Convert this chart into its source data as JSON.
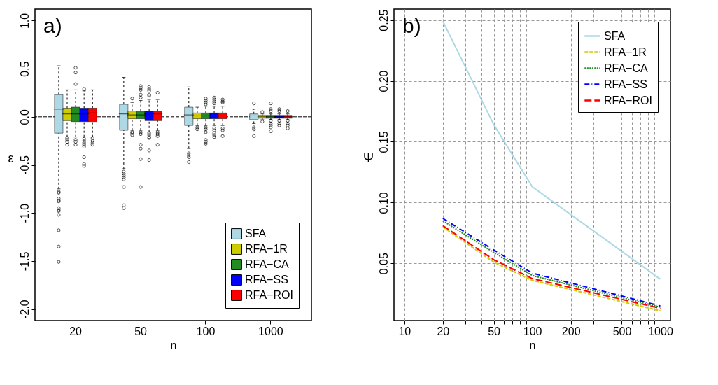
{
  "chart_data": [
    {
      "type": "box",
      "xlabel": "n",
      "ylabel": "ε",
      "categories": [
        "20",
        "50",
        "100",
        "1000"
      ],
      "legend": "bottom right",
      "annotations": [
        "a)"
      ],
      "ylim": [
        -2.12,
        1.12
      ],
      "yticks": [
        {
          "value": -2,
          "label": "-2.0"
        },
        {
          "value": -1.5,
          "label": "-1.5"
        },
        {
          "value": -1,
          "label": "-1.0"
        },
        {
          "value": -0.5,
          "label": "-0.5"
        },
        {
          "value": 0,
          "label": "0.0"
        },
        {
          "value": 0.5,
          "label": "0.5"
        },
        {
          "value": 1,
          "label": "1.0"
        }
      ],
      "ref_lines": [
        {
          "axis": "y",
          "value": 0,
          "label": null,
          "line_style": "dashed",
          "color": "#000000"
        }
      ],
      "series": [
        {
          "name": "SFA",
          "color": "#add8e6",
          "boxes": [
            {
              "low": -0.75,
              "q1": -0.17,
              "median": 0.08,
              "q3": 0.23,
              "high": 0.53,
              "outliers": [
                -0.78,
                -0.79,
                -0.85,
                -0.87,
                -0.88,
                -0.95,
                -0.97,
                -0.98,
                -1.02,
                -1.18,
                -1.35,
                -1.51
              ]
            },
            {
              "low": -0.54,
              "q1": -0.14,
              "median": 0.03,
              "q3": 0.13,
              "high": 0.41,
              "outliers": [
                -0.57,
                -0.59,
                -0.61,
                -0.63,
                -0.65,
                -0.73,
                -0.92,
                -0.95
              ]
            },
            {
              "low": -0.33,
              "q1": -0.09,
              "median": 0.02,
              "q3": 0.1,
              "high": 0.31,
              "outliers": [
                -0.38,
                -0.4,
                -0.42,
                -0.47
              ]
            },
            {
              "low": -0.07,
              "q1": -0.03,
              "median": 0.01,
              "q3": 0.03,
              "high": 0.08,
              "outliers": [
                0.14,
                -0.11,
                -0.13,
                -0.2
              ]
            }
          ]
        },
        {
          "name": "RFA−1R",
          "color": "#cdcd00",
          "boxes": [
            {
              "low": -0.21,
              "q1": -0.04,
              "median": 0.03,
              "q3": 0.09,
              "high": 0.28,
              "outliers": [
                -0.22,
                -0.24,
                -0.26,
                -0.29
              ]
            },
            {
              "low": -0.14,
              "q1": -0.02,
              "median": 0.02,
              "q3": 0.06,
              "high": 0.15,
              "outliers": [
                0.19,
                -0.16,
                -0.17,
                -0.19
              ]
            },
            {
              "low": -0.09,
              "q1": -0.02,
              "median": 0.01,
              "q3": 0.04,
              "high": 0.1,
              "outliers": [
                -0.11,
                -0.13
              ]
            },
            {
              "low": -0.03,
              "q1": -0.015,
              "median": 0.0,
              "q3": 0.015,
              "high": 0.03,
              "outliers": [
                0.05,
                -0.05
              ]
            }
          ]
        },
        {
          "name": "RFA−CA",
          "color": "#228b22",
          "boxes": [
            {
              "low": -0.21,
              "q1": -0.05,
              "median": 0.03,
              "q3": 0.1,
              "high": 0.28,
              "outliers": [
                0.51,
                0.46,
                0.34,
                -0.24,
                -0.26,
                -0.29
              ]
            },
            {
              "low": -0.14,
              "q1": -0.02,
              "median": 0.02,
              "q3": 0.06,
              "high": 0.17,
              "outliers": [
                0.32,
                0.3,
                0.28,
                0.23,
                0.2,
                -0.16,
                -0.18,
                -0.29,
                -0.33,
                -0.44,
                -0.73
              ]
            },
            {
              "low": -0.09,
              "q1": -0.02,
              "median": 0.01,
              "q3": 0.04,
              "high": 0.11,
              "outliers": [
                0.19,
                0.17,
                0.15,
                0.13,
                -0.11,
                -0.13,
                -0.16,
                -0.24,
                -0.26,
                -0.28
              ]
            },
            {
              "low": -0.03,
              "q1": -0.015,
              "median": 0.0,
              "q3": 0.015,
              "high": 0.03,
              "outliers": [
                0.14,
                0.08,
                0.06,
                -0.04,
                -0.07,
                -0.09,
                -0.11,
                -0.15
              ]
            }
          ]
        },
        {
          "name": "RFA−SS",
          "color": "#0000ff",
          "boxes": [
            {
              "low": -0.21,
              "q1": -0.05,
              "median": 0.03,
              "q3": 0.09,
              "high": 0.27,
              "outliers": [
                0.29,
                -0.23,
                -0.25,
                -0.27,
                -0.29,
                -0.31,
                -0.42,
                -0.49,
                -0.51
              ]
            },
            {
              "low": -0.16,
              "q1": -0.04,
              "median": 0.03,
              "q3": 0.06,
              "high": 0.18,
              "outliers": [
                0.31,
                0.29,
                0.27,
                0.23,
                0.22,
                -0.17,
                -0.19,
                -0.21,
                -0.22,
                -0.35,
                -0.45
              ]
            },
            {
              "low": -0.09,
              "q1": -0.02,
              "median": 0.01,
              "q3": 0.04,
              "high": 0.11,
              "outliers": [
                0.2,
                0.18,
                0.16,
                0.14,
                -0.12,
                -0.14,
                -0.17,
                -0.19,
                -0.21
              ]
            },
            {
              "low": -0.03,
              "q1": -0.015,
              "median": 0.0,
              "q3": 0.015,
              "high": 0.03,
              "outliers": [
                0.08,
                0.06,
                -0.04,
                -0.07,
                -0.09
              ]
            }
          ]
        },
        {
          "name": "RFA−ROI",
          "color": "#ff0000",
          "boxes": [
            {
              "low": -0.21,
              "q1": -0.05,
              "median": 0.04,
              "q3": 0.09,
              "high": 0.28,
              "outliers": [
                -0.22,
                -0.25,
                -0.27,
                -0.29
              ]
            },
            {
              "low": -0.14,
              "q1": -0.04,
              "median": 0.03,
              "q3": 0.06,
              "high": 0.18,
              "outliers": [
                0.25,
                -0.16,
                -0.18,
                -0.2,
                -0.29
              ]
            },
            {
              "low": -0.09,
              "q1": -0.02,
              "median": 0.01,
              "q3": 0.04,
              "high": 0.11,
              "outliers": [
                0.18,
                0.16,
                0.15,
                -0.12,
                -0.14,
                -0.2
              ]
            },
            {
              "low": -0.03,
              "q1": -0.015,
              "median": 0.0,
              "q3": 0.015,
              "high": 0.03,
              "outliers": [
                0.06,
                -0.04,
                -0.07,
                -0.09,
                -0.12
              ]
            }
          ]
        }
      ]
    },
    {
      "type": "line",
      "xlabel": "n",
      "ylabel": "Ψ",
      "log": "x",
      "grid": true,
      "legend": "top right",
      "annotations": [
        "b)"
      ],
      "xlim": [
        8.3,
        1200
      ],
      "xticks": [
        10,
        20,
        {
          "value": 30,
          "label": null
        },
        {
          "value": 40,
          "label": null
        },
        50,
        {
          "value": 60,
          "label": null
        },
        {
          "value": 70,
          "label": null
        },
        {
          "value": 80,
          "label": null
        },
        {
          "value": 90,
          "label": null
        },
        100,
        200,
        {
          "value": 300,
          "label": null
        },
        {
          "value": 400,
          "label": null
        },
        500,
        {
          "value": 600,
          "label": null
        },
        {
          "value": 700,
          "label": null
        },
        {
          "value": 800,
          "label": null
        },
        {
          "value": 900,
          "label": null
        },
        1000
      ],
      "ylim": [
        0.003,
        0.259
      ],
      "yticks": [
        0.05,
        {
          "value": 0.1,
          "label": "0.10"
        },
        0.15,
        {
          "value": 0.2,
          "label": "0.20"
        },
        0.25
      ],
      "x": [
        20,
        50,
        100,
        1000
      ],
      "series": [
        {
          "name": "SFA",
          "color": "#add8e6",
          "line_style": "solid",
          "values": [
            0.249,
            0.164,
            0.113,
            0.037
          ]
        },
        {
          "name": "RFA−1R",
          "color": "#cdcd00",
          "line_style": "dashed",
          "values": [
            0.08,
            0.051,
            0.036,
            0.011
          ]
        },
        {
          "name": "RFA−CA",
          "color": "#228b22",
          "line_style": "dotted",
          "values": [
            0.085,
            0.059,
            0.04,
            0.014
          ]
        },
        {
          "name": "RFA−SS",
          "color": "#0000ff",
          "line_style": "dashdot",
          "values": [
            0.087,
            0.061,
            0.042,
            0.015
          ]
        },
        {
          "name": "RFA−ROI",
          "color": "#ff0000",
          "line_style": "longdash",
          "values": [
            0.081,
            0.053,
            0.0375,
            0.013
          ]
        }
      ]
    }
  ]
}
